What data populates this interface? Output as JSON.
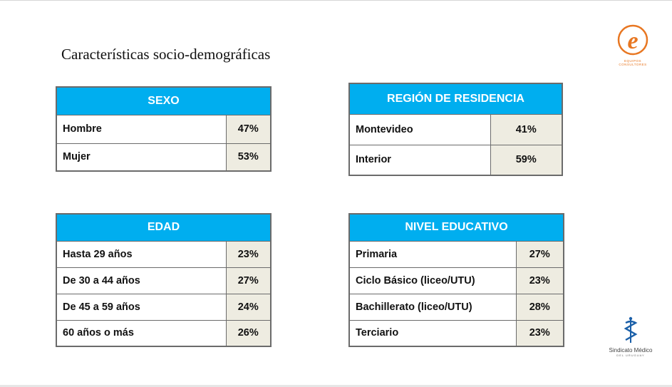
{
  "title": "Características socio-demográficas",
  "tables": {
    "sexo": {
      "header": "SEXO",
      "rows": [
        {
          "label": "Hombre",
          "value": "47%"
        },
        {
          "label": "Mujer",
          "value": "53%"
        }
      ]
    },
    "region": {
      "header": "REGIÓN DE RESIDENCIA",
      "rows": [
        {
          "label": "Montevideo",
          "value": "41%"
        },
        {
          "label": "Interior",
          "value": "59%"
        }
      ]
    },
    "edad": {
      "header": "EDAD",
      "rows": [
        {
          "label": "Hasta 29 años",
          "value": "23%"
        },
        {
          "label": "De 30 a 44 años",
          "value": "27%"
        },
        {
          "label": "De 45 a 59 años",
          "value": "24%"
        },
        {
          "label": "60 años o más",
          "value": "26%"
        }
      ]
    },
    "nivel": {
      "header": "NIVEL EDUCATIVO",
      "rows": [
        {
          "label": "Primaria",
          "value": "27%"
        },
        {
          "label": "Ciclo Básico (liceo/UTU)",
          "value": "23%"
        },
        {
          "label": "Bachillerato (liceo/UTU)",
          "value": "28%"
        },
        {
          "label": "Terciario",
          "value": "23%"
        }
      ]
    }
  },
  "logos": {
    "equipos": {
      "icon": "equipos-e-logo-icon",
      "text": "EQUIPOS",
      "subtext": "CONSULTORES",
      "color": "#e87722"
    },
    "sindicato": {
      "icon": "sindicato-medico-logo-icon",
      "text": "Sindicato Médico",
      "subtext": "DEL URUGUAY",
      "color": "#1a5fa8"
    }
  }
}
